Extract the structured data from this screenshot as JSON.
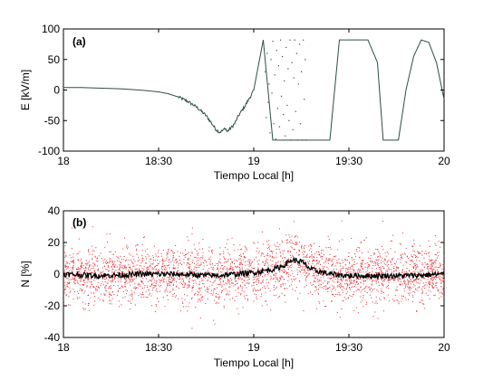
{
  "chart_data": [
    {
      "type": "line",
      "panel_label": "(a)",
      "xlabel": "Tiempo Local [h]",
      "ylabel": "E  [kV/m]",
      "xlim": [
        18.0,
        20.0
      ],
      "ylim": [
        -100,
        100
      ],
      "x_ticks": [
        {
          "value": 18.0,
          "label": "18"
        },
        {
          "value": 18.5,
          "label": "18:30"
        },
        {
          "value": 19.0,
          "label": "19"
        },
        {
          "value": 19.5,
          "label": "19:30"
        },
        {
          "value": 20.0,
          "label": "20"
        }
      ],
      "y_ticks": [
        {
          "value": 100,
          "label": "100"
        },
        {
          "value": 50,
          "label": "50"
        },
        {
          "value": 0,
          "label": "0"
        },
        {
          "value": -50,
          "label": "-50"
        },
        {
          "value": -100,
          "label": "-100"
        }
      ],
      "grid": false,
      "line_color": "#2b4f48",
      "series": [
        {
          "x": [
            18.0,
            18.1,
            18.2,
            18.3,
            18.4,
            18.5,
            18.55,
            18.6,
            18.65,
            18.7,
            18.75,
            18.78,
            18.8,
            18.82,
            18.84,
            18.85,
            18.86,
            18.88,
            18.9,
            18.92,
            18.95,
            18.98,
            19.0,
            19.05,
            19.1,
            19.2,
            19.3,
            19.4,
            19.45,
            19.55,
            19.6,
            19.65,
            19.68,
            19.72,
            19.76,
            19.8,
            19.84,
            19.88,
            19.92,
            19.96,
            20.0
          ],
          "y": [
            4,
            4,
            3,
            2,
            0,
            -3,
            -6,
            -11,
            -18,
            -28,
            -42,
            -55,
            -64,
            -69,
            -66,
            -62,
            -68,
            -62,
            -55,
            -42,
            -28,
            -12,
            0,
            82,
            -82,
            -82,
            -82,
            -82,
            82,
            82,
            82,
            45,
            -82,
            -82,
            -82,
            0,
            55,
            82,
            78,
            45,
            -15
          ]
        }
      ],
      "scatter_points": [
        {
          "x": 19.06,
          "y": 30
        },
        {
          "x": 19.065,
          "y": -45
        },
        {
          "x": 19.07,
          "y": 60
        },
        {
          "x": 19.075,
          "y": -20
        },
        {
          "x": 19.08,
          "y": 10
        },
        {
          "x": 19.085,
          "y": -70
        },
        {
          "x": 19.09,
          "y": 50
        },
        {
          "x": 19.095,
          "y": -5
        },
        {
          "x": 19.1,
          "y": 80
        },
        {
          "x": 19.105,
          "y": -55
        },
        {
          "x": 19.11,
          "y": 25
        },
        {
          "x": 19.115,
          "y": -80
        },
        {
          "x": 19.12,
          "y": 65
        },
        {
          "x": 19.125,
          "y": -30
        },
        {
          "x": 19.13,
          "y": 40
        },
        {
          "x": 19.135,
          "y": -60
        },
        {
          "x": 19.14,
          "y": 82
        },
        {
          "x": 19.145,
          "y": -10
        },
        {
          "x": 19.15,
          "y": 55
        },
        {
          "x": 19.155,
          "y": -40
        },
        {
          "x": 19.16,
          "y": 15
        },
        {
          "x": 19.165,
          "y": -75
        },
        {
          "x": 19.17,
          "y": 70
        },
        {
          "x": 19.175,
          "y": -25
        },
        {
          "x": 19.18,
          "y": 35
        },
        {
          "x": 19.185,
          "y": -50
        },
        {
          "x": 19.19,
          "y": 82
        },
        {
          "x": 19.195,
          "y": -82
        },
        {
          "x": 19.2,
          "y": 45
        },
        {
          "x": 19.205,
          "y": -65
        },
        {
          "x": 19.21,
          "y": 20
        },
        {
          "x": 19.215,
          "y": 82
        },
        {
          "x": 19.22,
          "y": -35
        },
        {
          "x": 19.225,
          "y": 60
        },
        {
          "x": 19.23,
          "y": -82
        },
        {
          "x": 19.235,
          "y": 10
        },
        {
          "x": 19.24,
          "y": 75
        },
        {
          "x": 19.245,
          "y": -55
        },
        {
          "x": 19.25,
          "y": 30
        },
        {
          "x": 19.255,
          "y": -82
        },
        {
          "x": 19.26,
          "y": 82
        },
        {
          "x": 19.265,
          "y": -15
        },
        {
          "x": 19.27,
          "y": 50
        },
        {
          "x": 19.275,
          "y": -82
        }
      ]
    },
    {
      "type": "scatter",
      "panel_label": "(b)",
      "xlabel": "Tiempo Local [h]",
      "ylabel": "N  [%]",
      "xlim": [
        18.0,
        20.0
      ],
      "ylim": [
        -40,
        40
      ],
      "x_ticks": [
        {
          "value": 18.0,
          "label": "18"
        },
        {
          "value": 18.5,
          "label": "18:30"
        },
        {
          "value": 19.0,
          "label": "19"
        },
        {
          "value": 19.5,
          "label": "19:30"
        },
        {
          "value": 20.0,
          "label": "20"
        }
      ],
      "y_ticks": [
        {
          "value": 40,
          "label": "40"
        },
        {
          "value": 20,
          "label": "20"
        },
        {
          "value": 0,
          "label": "0"
        },
        {
          "value": -20,
          "label": "-20"
        },
        {
          "value": -40,
          "label": "-40"
        }
      ],
      "grid": false,
      "scatter_color": "#e8242a",
      "line_color": "#000000",
      "scatter_spread": 9,
      "series": [
        {
          "x": [
            18.0,
            18.2,
            18.4,
            18.6,
            18.8,
            18.9,
            19.0,
            19.1,
            19.15,
            19.2,
            19.25,
            19.3,
            19.4,
            19.5,
            19.6,
            19.8,
            20.0
          ],
          "y": [
            0,
            -1,
            0,
            0,
            -1,
            0,
            1,
            3,
            5,
            9,
            8,
            3,
            0,
            -1,
            -1,
            -1,
            0
          ]
        }
      ]
    }
  ]
}
